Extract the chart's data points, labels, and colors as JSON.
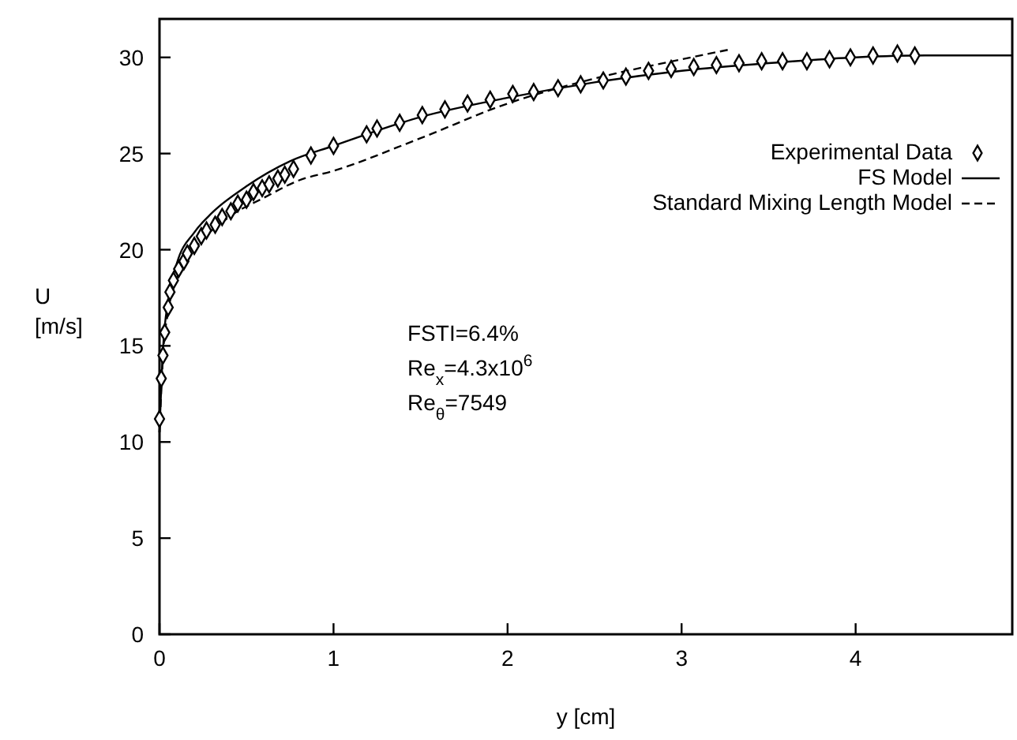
{
  "chart_data": {
    "type": "scatter",
    "xlabel": "y [cm]",
    "ylabel": "U [m/s]",
    "xlim": [
      0,
      4.9
    ],
    "ylim": [
      0,
      32
    ],
    "xticks": [
      0,
      1,
      2,
      3,
      4
    ],
    "yticks": [
      0,
      5,
      10,
      15,
      20,
      25,
      30
    ],
    "grid": false,
    "legend": "top right",
    "annotations": [
      "FSTI=6.4%",
      "Re$_{x}$=4.3x10$^{6}$",
      "Re$_{θ}$=7549"
    ],
    "series": [
      {
        "name": "Experimental Data",
        "marker": "diamond",
        "color": "#000000",
        "x": [
          0,
          0.01,
          0.02,
          0.03,
          0.05,
          0.06,
          0.08,
          0.11,
          0.14,
          0.16,
          0.2,
          0.24,
          0.27,
          0.32,
          0.36,
          0.41,
          0.45,
          0.5,
          0.54,
          0.59,
          0.63,
          0.68,
          0.72,
          0.77,
          0.87,
          1.0,
          1.19,
          1.25,
          1.38,
          1.51,
          1.64,
          1.77,
          1.9,
          2.03,
          2.15,
          2.29,
          2.42,
          2.55,
          2.68,
          2.81,
          2.94,
          3.07,
          3.2,
          3.33,
          3.46,
          3.58,
          3.72,
          3.85,
          3.97,
          4.1,
          4.24,
          4.34
        ],
        "values": [
          11.2,
          13.3,
          14.5,
          15.7,
          17,
          17.8,
          18.4,
          19,
          19.4,
          19.8,
          20.2,
          20.7,
          21,
          21.3,
          21.7,
          22,
          22.4,
          22.6,
          23,
          23.2,
          23.4,
          23.7,
          23.9,
          24.2,
          24.9,
          25.4,
          26,
          26.3,
          26.6,
          27,
          27.3,
          27.6,
          27.8,
          28.1,
          28.2,
          28.4,
          28.6,
          28.8,
          29,
          29.3,
          29.4,
          29.5,
          29.6,
          29.7,
          29.8,
          29.8,
          29.8,
          29.9,
          30,
          30.1,
          30.2,
          30.1
        ]
      },
      {
        "name": "FS Model",
        "type": "line",
        "line_style": "solid",
        "marker": "none",
        "color": "#000000",
        "x": [
          0,
          0.02,
          0.05,
          0.1,
          0.2,
          0.3,
          0.5,
          0.75,
          1.0,
          1.5,
          2,
          2.5,
          3,
          3.5,
          4,
          4.4,
          4.9
        ],
        "values": [
          10.5,
          14.8,
          17.4,
          19.3,
          20.9,
          21.9,
          23.3,
          24.6,
          25.4,
          26.9,
          27.9,
          28.7,
          29.3,
          29.7,
          30,
          30.1,
          30.1
        ]
      },
      {
        "name": "Standard Mixing Length Model",
        "type": "line",
        "line_style": "dashed",
        "marker": "none",
        "color": "#000000",
        "x": [
          0,
          0.02,
          0.05,
          0.1,
          0.2,
          0.4,
          0.6,
          0.8,
          1.0,
          1.5,
          2,
          2.5,
          3,
          3.27
        ],
        "values": [
          10.5,
          14.5,
          16.8,
          18.5,
          20,
          21.7,
          22.7,
          23.6,
          24.1,
          25.8,
          27.6,
          28.9,
          29.9,
          30.4
        ]
      }
    ]
  }
}
